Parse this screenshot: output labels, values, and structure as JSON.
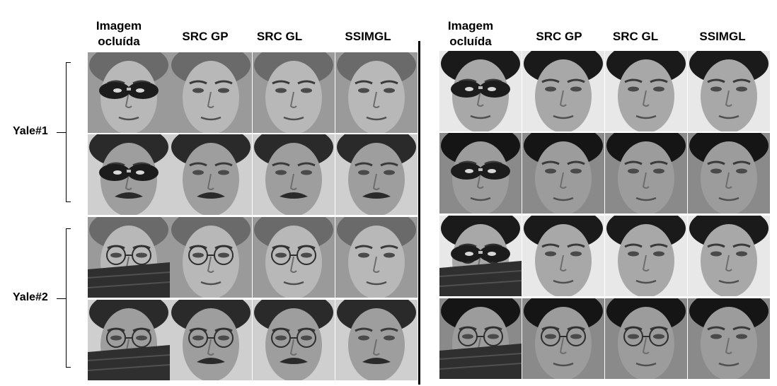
{
  "headers": {
    "occluded_line1": "Imagem",
    "occluded_line2": "ocluída",
    "src_gp": "SRC GP",
    "src_gl": "SRC GL",
    "ssimgl": "SSIMGL"
  },
  "row_labels": {
    "yale1": "Yale#1",
    "yale2": "Yale#2"
  },
  "panels": [
    {
      "name": "left",
      "rows": [
        {
          "occlusion": "sunglasses",
          "subject": "light-hair-man"
        },
        {
          "occlusion": "sunglasses",
          "subject": "moustache-man"
        },
        {
          "occlusion": "glasses-and-scarf",
          "subject": "light-hair-man"
        },
        {
          "occlusion": "glasses-and-scarf",
          "subject": "moustache-man"
        }
      ]
    },
    {
      "name": "right",
      "rows": [
        {
          "occlusion": "sunglasses",
          "subject": "dark-hair-man"
        },
        {
          "occlusion": "sunglasses",
          "subject": "dark-hair-man-2"
        },
        {
          "occlusion": "sunglasses-and-scarf",
          "subject": "dark-hair-man"
        },
        {
          "occlusion": "glasses-and-scarf",
          "subject": "dark-hair-man-2"
        }
      ]
    }
  ]
}
